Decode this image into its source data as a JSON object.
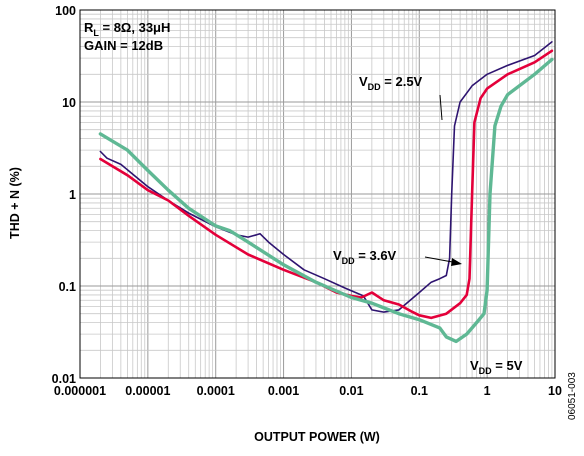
{
  "chart_data": {
    "type": "line",
    "xlabel": "OUTPUT POWER (W)",
    "ylabel": "THD + N (%)",
    "x_scale": "log",
    "y_scale": "log",
    "xlim": [
      1e-06,
      10
    ],
    "ylim": [
      0.01,
      100
    ],
    "grid": true,
    "x_ticks": [
      {
        "value": 1e-06,
        "label": "0.000001"
      },
      {
        "value": 1e-05,
        "label": "0.00001"
      },
      {
        "value": 0.0001,
        "label": "0.0001"
      },
      {
        "value": 0.001,
        "label": "0.001"
      },
      {
        "value": 0.01,
        "label": "0.01"
      },
      {
        "value": 0.1,
        "label": "0.1"
      },
      {
        "value": 1,
        "label": "1"
      },
      {
        "value": 10,
        "label": "10"
      }
    ],
    "y_ticks": [
      {
        "value": 0.01,
        "label": "0.01"
      },
      {
        "value": 0.1,
        "label": "0.1"
      },
      {
        "value": 1,
        "label": "1"
      },
      {
        "value": 10,
        "label": "10"
      },
      {
        "value": 100,
        "label": "100"
      }
    ],
    "conditions": {
      "line1_main": "R",
      "line1_sub": "L",
      "line1_rest": " = 8Ω, 33μH",
      "line2": "GAIN = 12dB"
    },
    "series": [
      {
        "color": "#2e1470",
        "label_main": "V",
        "label_sub": "DD",
        "label_rest": " = 2.5V",
        "points": [
          [
            2e-06,
            2.9
          ],
          [
            2.5e-06,
            2.45
          ],
          [
            4e-06,
            2.1
          ],
          [
            1e-05,
            1.2
          ],
          [
            2e-05,
            0.85
          ],
          [
            4e-05,
            0.62
          ],
          [
            0.0001,
            0.44
          ],
          [
            0.0002,
            0.36
          ],
          [
            0.0003,
            0.34
          ],
          [
            0.0004,
            0.36
          ],
          [
            0.00045,
            0.37
          ],
          [
            0.0006,
            0.3
          ],
          [
            0.001,
            0.22
          ],
          [
            0.002,
            0.15
          ],
          [
            0.004,
            0.12
          ],
          [
            0.008,
            0.095
          ],
          [
            0.015,
            0.078
          ],
          [
            0.02,
            0.055
          ],
          [
            0.03,
            0.052
          ],
          [
            0.05,
            0.055
          ],
          [
            0.1,
            0.085
          ],
          [
            0.15,
            0.11
          ],
          [
            0.2,
            0.12
          ],
          [
            0.25,
            0.13
          ],
          [
            0.28,
            0.2
          ],
          [
            0.3,
            1.0
          ],
          [
            0.33,
            5.5
          ],
          [
            0.4,
            10
          ],
          [
            0.6,
            15
          ],
          [
            1,
            20
          ],
          [
            2,
            25
          ],
          [
            5,
            32
          ],
          [
            9,
            45
          ]
        ]
      },
      {
        "color": "#e4003a",
        "label_main": "V",
        "label_sub": "DD",
        "label_rest": " = 3.6V",
        "points": [
          [
            2e-06,
            2.4
          ],
          [
            5e-06,
            1.6
          ],
          [
            1e-05,
            1.1
          ],
          [
            2e-05,
            0.85
          ],
          [
            4e-05,
            0.58
          ],
          [
            0.0001,
            0.36
          ],
          [
            0.0003,
            0.22
          ],
          [
            0.001,
            0.15
          ],
          [
            0.003,
            0.11
          ],
          [
            0.006,
            0.085
          ],
          [
            0.01,
            0.078
          ],
          [
            0.014,
            0.075
          ],
          [
            0.02,
            0.085
          ],
          [
            0.03,
            0.07
          ],
          [
            0.05,
            0.063
          ],
          [
            0.08,
            0.052
          ],
          [
            0.1,
            0.048
          ],
          [
            0.15,
            0.045
          ],
          [
            0.25,
            0.05
          ],
          [
            0.4,
            0.065
          ],
          [
            0.5,
            0.08
          ],
          [
            0.55,
            0.12
          ],
          [
            0.6,
            1.0
          ],
          [
            0.65,
            6.0
          ],
          [
            0.8,
            11
          ],
          [
            1,
            14
          ],
          [
            2,
            20
          ],
          [
            5,
            27
          ],
          [
            9,
            36
          ]
        ]
      },
      {
        "color": "#5fb894",
        "label_main": "V",
        "label_sub": "DD",
        "label_rest": " = 5V",
        "points": [
          [
            2e-06,
            4.5
          ],
          [
            5e-06,
            3.0
          ],
          [
            1e-05,
            1.8
          ],
          [
            2e-05,
            1.1
          ],
          [
            4e-05,
            0.7
          ],
          [
            0.0001,
            0.45
          ],
          [
            0.00016,
            0.4
          ],
          [
            0.0003,
            0.3
          ],
          [
            0.001,
            0.17
          ],
          [
            0.003,
            0.11
          ],
          [
            0.01,
            0.075
          ],
          [
            0.02,
            0.065
          ],
          [
            0.05,
            0.05
          ],
          [
            0.1,
            0.043
          ],
          [
            0.2,
            0.035
          ],
          [
            0.25,
            0.028
          ],
          [
            0.35,
            0.025
          ],
          [
            0.5,
            0.03
          ],
          [
            0.7,
            0.04
          ],
          [
            0.9,
            0.05
          ],
          [
            1.0,
            0.09
          ],
          [
            1.1,
            1.0
          ],
          [
            1.3,
            5.5
          ],
          [
            1.6,
            9
          ],
          [
            2,
            12
          ],
          [
            5,
            20
          ],
          [
            9,
            29
          ]
        ]
      }
    ],
    "figure_id": "06051-003"
  }
}
